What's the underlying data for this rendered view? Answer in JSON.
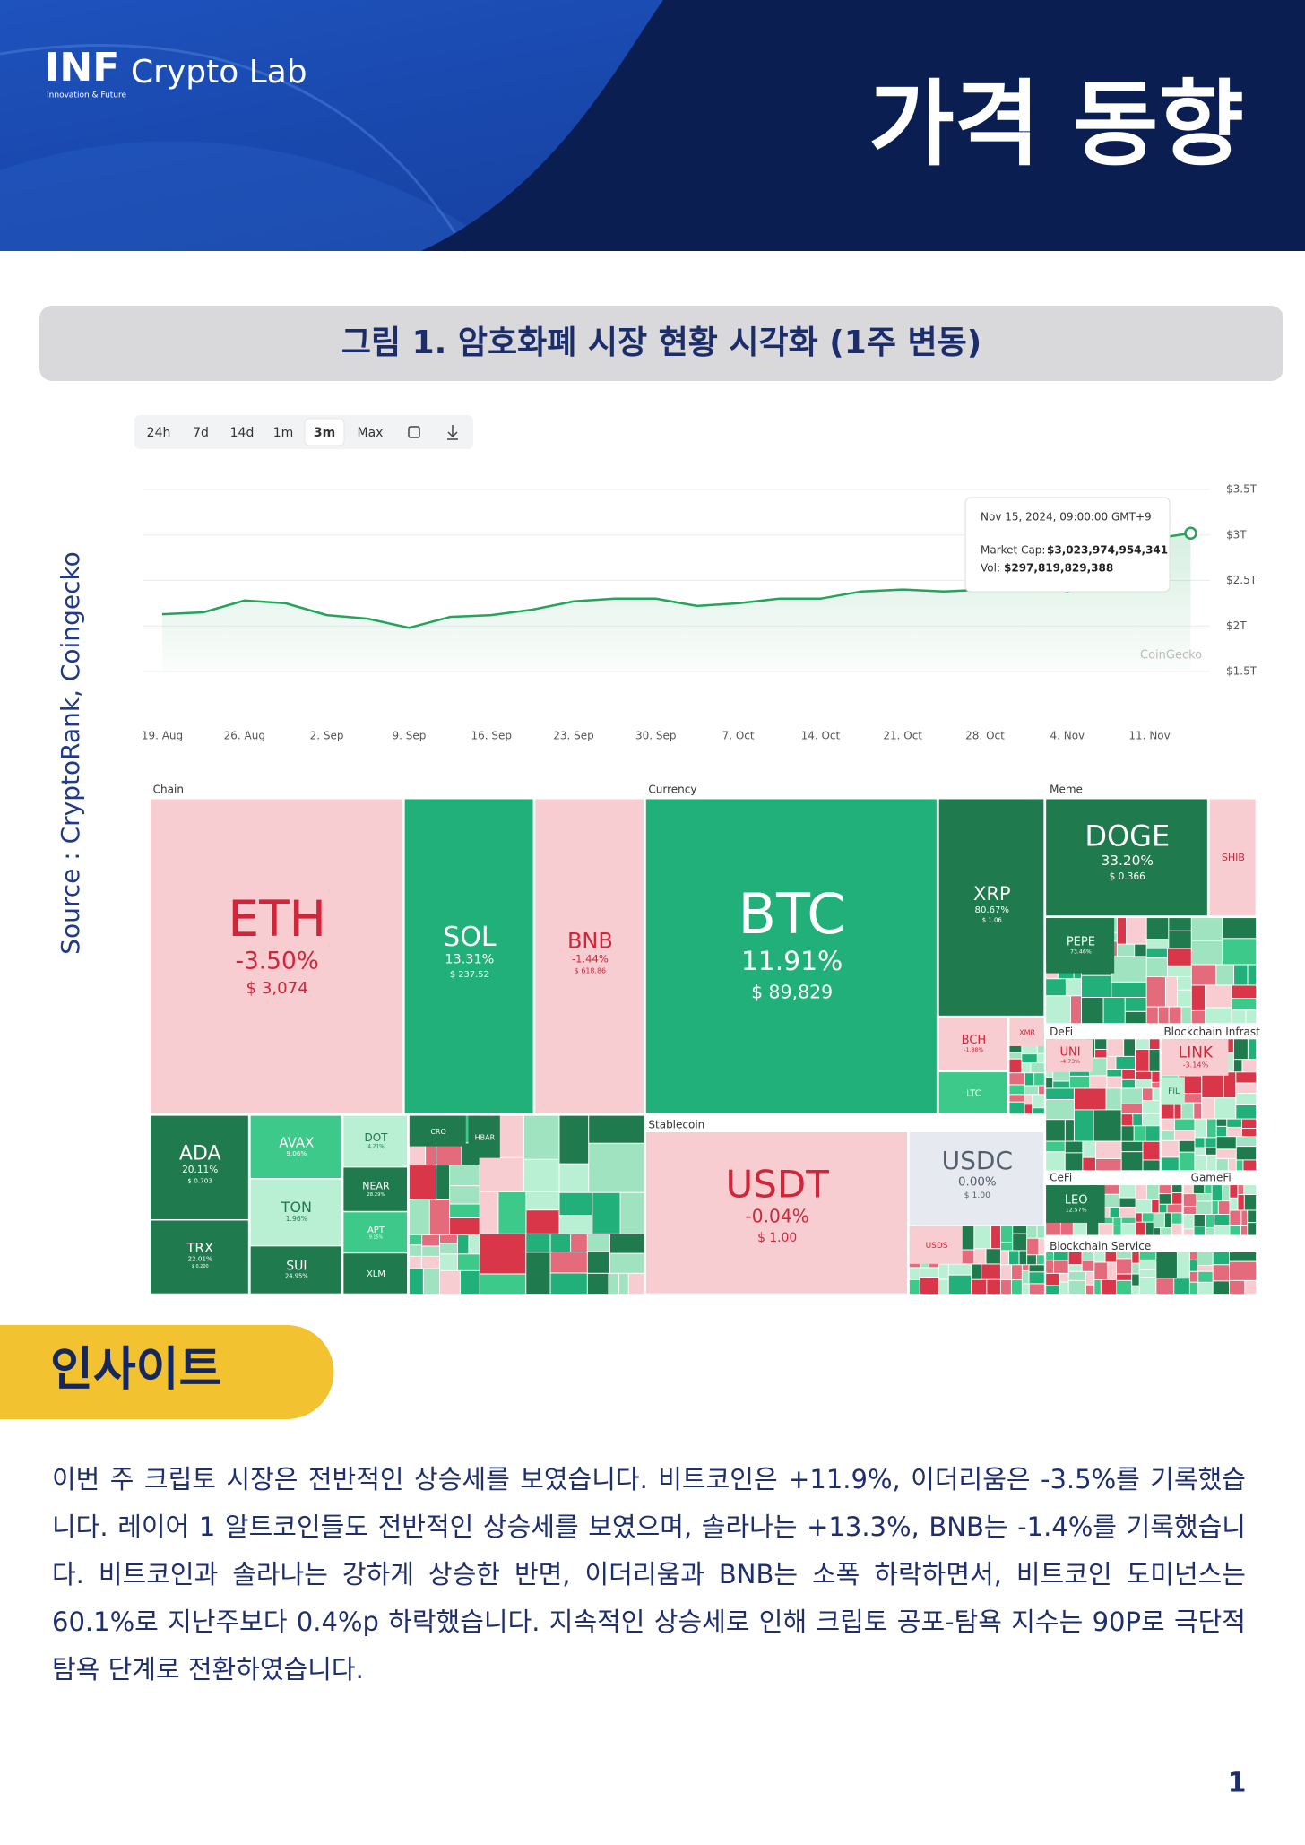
{
  "header": {
    "logo_mark": "INF",
    "logo_text": "Crypto Lab",
    "logo_tagline": "Innovation & Future",
    "title": "가격 동향"
  },
  "figure": {
    "caption": "그림 1. 암호화폐 시장 현황 시각화 (1주 변동)",
    "source": "Source : CryptoRank, Coingecko"
  },
  "chart_data": {
    "type": "line",
    "buttons": [
      "24h",
      "7d",
      "14d",
      "1m",
      "3m",
      "Max"
    ],
    "active_button": 4,
    "color": "#22a55b",
    "grid": true,
    "categories": [
      "19. Aug",
      null,
      "26. Aug",
      null,
      "2. Sep",
      null,
      "9. Sep",
      null,
      "16. Sep",
      null,
      "23. Sep",
      null,
      "30. Sep",
      null,
      "7. Oct",
      null,
      "14. Oct",
      null,
      "21. Oct",
      null,
      "28. Oct",
      null,
      "4. Nov",
      null,
      "11. Nov",
      null
    ],
    "values": [
      2.13,
      2.15,
      2.28,
      2.25,
      2.12,
      2.08,
      1.98,
      2.1,
      2.12,
      2.18,
      2.27,
      2.3,
      2.3,
      2.22,
      2.25,
      2.3,
      2.3,
      2.38,
      2.4,
      2.38,
      2.4,
      2.45,
      2.38,
      2.45,
      2.95,
      3.02
    ],
    "ylim": [
      1.5,
      3.5
    ],
    "yticks": [
      {
        "value": 1.5,
        "label": "$1.5T"
      },
      {
        "value": 2,
        "label": "$2T"
      },
      {
        "value": 2.5,
        "label": "$2.5T"
      },
      {
        "value": 3,
        "label": "$3T"
      },
      {
        "value": 3.5,
        "label": "$3.5T"
      }
    ],
    "tooltip": {
      "date": "Nov 15, 2024, 09:00:00 GMT+9",
      "market_cap_label": "Market Cap:",
      "market_cap": "$3,023,974,954,341",
      "vol_label": "Vol:",
      "vol": "$297,819,829,388"
    },
    "watermark": "CoinGecko"
  },
  "treemap": {
    "groups": [
      "Chain",
      "Currency",
      "Meme",
      "Stablecoin",
      "DeFi",
      "Blockchain Infrast",
      "CeFi",
      "GameFi",
      "Blockchain Service"
    ],
    "tiles": [
      {
        "name": "ETH",
        "change": "-3.50%",
        "price": "$ 3,074"
      },
      {
        "name": "SOL",
        "change": "13.31%",
        "price": "$ 237.52"
      },
      {
        "name": "BNB",
        "change": "-1.44%",
        "price": "$ 618.86"
      },
      {
        "name": "BTC",
        "change": "11.91%",
        "price": "$ 89,829"
      },
      {
        "name": "XRP",
        "change": "80.67%",
        "price": "$ 1.06"
      },
      {
        "name": "DOGE",
        "change": "33.20%",
        "price": "$ 0.366"
      },
      {
        "name": "SHIB"
      },
      {
        "name": "USDT",
        "change": "-0.04%",
        "price": "$ 1.00"
      },
      {
        "name": "USDC",
        "change": "0.00%",
        "price": "$ 1.00"
      },
      {
        "name": "ADA",
        "change": "20.11%",
        "price": "$ 0.703"
      },
      {
        "name": "TRX",
        "change": "22.01%",
        "price": "$ 0.200"
      },
      {
        "name": "AVAX",
        "change": "9.06%"
      },
      {
        "name": "TON",
        "change": "1.96%"
      },
      {
        "name": "SUI",
        "change": "24.95%"
      },
      {
        "name": "DOT",
        "change": "4.21%"
      },
      {
        "name": "NEAR",
        "change": "28.29%"
      },
      {
        "name": "APT",
        "change": "9.15%"
      },
      {
        "name": "XLM"
      },
      {
        "name": "PEPE",
        "change": "73.46%"
      },
      {
        "name": "BCH",
        "change": "-1.88%"
      },
      {
        "name": "LTC"
      },
      {
        "name": "UNI",
        "change": "-4.73%"
      },
      {
        "name": "LINK",
        "change": "-3.14%"
      },
      {
        "name": "LEO",
        "change": "12.57%"
      },
      {
        "name": "USDS"
      },
      {
        "name": "FIL"
      },
      {
        "name": "CRO"
      },
      {
        "name": "HBAR"
      },
      {
        "name": "XMR"
      }
    ]
  },
  "insight": {
    "heading": "인사이트",
    "body": "이번 주 크립토 시장은 전반적인 상승세를 보였습니다. 비트코인은 +11.9%, 이더리움은 -3.5%를 기록했습니다. 레이어 1 알트코인들도 전반적인 상승세를 보였으며, 솔라나는 +13.3%, BNB는 -1.4%를 기록했습니다. 비트코인과 솔라나는 강하게 상승한 반면, 이더리움과 BNB는 소폭 하락하면서, 비트코인 도미넌스는 60.1%로 지난주보다 0.4%p 하락했습니다. 지속적인 상승세로 인해 크립토 공포-탐욕 지수는 90P로 극단적 탐욕 단계로 전환하였습니다."
  },
  "page_number": 1
}
